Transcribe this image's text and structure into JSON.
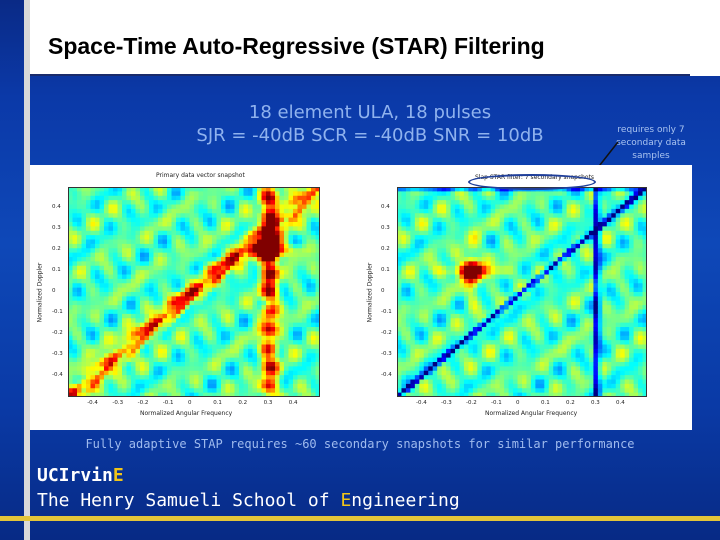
{
  "slide": {
    "title": "Space-Time Auto-Regressive (STAR) Filtering",
    "subtitle_line1": "18 element ULA, 18 pulses",
    "subtitle_line2": "SJR = -40dB   SCR = -40dB   SNR = 10dB",
    "callout_note": "requires only 7 secondary data samples",
    "caption": "Fully adaptive STAP requires ~60 secondary snapshots for similar performance",
    "brand_line1_a": "UCIrvin",
    "brand_line1_b": "E",
    "brand_line2_a": "The Henry Samueli School of ",
    "brand_line2_b": "E",
    "brand_line2_c": "ngineering"
  },
  "chart_data": [
    {
      "type": "heatmap",
      "title": "Primary data vector snapshot",
      "xlabel": "Normalized Angular Frequency",
      "ylabel": "Normalized Doppler",
      "xticks": [
        "-0.4",
        "-0.3",
        "-0.2",
        "-0.1",
        "0",
        "0.1",
        "0.2",
        "0.3",
        "0.4"
      ],
      "yticks": [
        "0.4",
        "0.3",
        "0.2",
        "0.1",
        "0",
        "-0.1",
        "-0.2",
        "-0.3",
        "-0.4"
      ],
      "xlim": [
        -0.5,
        0.5
      ],
      "ylim": [
        -0.5,
        0.5
      ],
      "features": [
        {
          "kind": "diagonal-ridge",
          "from": [
            -0.5,
            -0.5
          ],
          "to": [
            0.5,
            0.5
          ]
        },
        {
          "kind": "vertical-ridge",
          "x": 0.3
        },
        {
          "kind": "peak",
          "x": 0.3,
          "y": 0.2
        }
      ]
    },
    {
      "type": "heatmap",
      "title": "Slap STAR filter: 7 secondary snapshots",
      "xlabel": "Normalized Angular Frequency",
      "ylabel": "Normalized Doppler",
      "xticks": [
        "-0.4",
        "-0.3",
        "-0.2",
        "-0.1",
        "0",
        "0.1",
        "0.2",
        "0.3",
        "0.4"
      ],
      "yticks": [
        "0.4",
        "0.3",
        "0.2",
        "0.1",
        "0",
        "-0.1",
        "-0.2",
        "-0.3",
        "-0.4"
      ],
      "xlim": [
        -0.5,
        0.5
      ],
      "ylim": [
        -0.5,
        0.5
      ],
      "features": [
        {
          "kind": "peak",
          "x": -0.2,
          "y": 0.1
        },
        {
          "kind": "notch-line",
          "from": [
            -0.5,
            0.5
          ],
          "to": [
            0.5,
            0.5
          ]
        },
        {
          "kind": "notch-line",
          "from": [
            -0.5,
            -0.5
          ],
          "to": [
            0.5,
            0.5
          ]
        },
        {
          "kind": "notch-line",
          "x": 0.3
        }
      ]
    }
  ],
  "colors": {
    "background": "#0b39a8",
    "accent": "#f0c419",
    "subtitle": "#8fb2ee"
  }
}
